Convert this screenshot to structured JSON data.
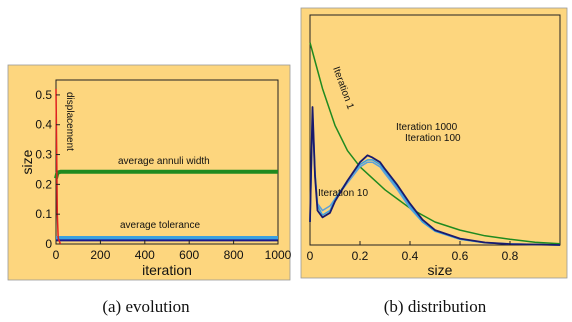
{
  "chart_data": [
    {
      "type": "line",
      "caption": "(a) evolution",
      "xlabel": "iteration",
      "ylabel": "size",
      "xlim": [
        0,
        1000
      ],
      "ylim": [
        0,
        0.55
      ],
      "xticks": [
        "0",
        "200",
        "400",
        "600",
        "800",
        "1000"
      ],
      "yticks": [
        "0",
        "0.1",
        "0.2",
        "0.3",
        "0.4",
        "0.5"
      ],
      "grid": false,
      "background": "#fdd67e",
      "series": [
        {
          "name": "average annuli width",
          "color": "#1f8a1f",
          "x": [
            0,
            5,
            10,
            20,
            50,
            100,
            200,
            400,
            600,
            800,
            1000
          ],
          "y": [
            0.22,
            0.235,
            0.24,
            0.242,
            0.242,
            0.242,
            0.242,
            0.242,
            0.242,
            0.242,
            0.242
          ]
        },
        {
          "name": "average tolerance",
          "color": "#3aa0e0",
          "x": [
            0,
            10,
            50,
            200,
            400,
            600,
            800,
            1000
          ],
          "y": [
            0.02,
            0.02,
            0.02,
            0.02,
            0.02,
            0.02,
            0.02,
            0.02
          ]
        },
        {
          "name": "",
          "color": "#1a1a8c",
          "x": [
            0,
            10,
            50,
            200,
            400,
            600,
            800,
            1000
          ],
          "y": [
            0.012,
            0.012,
            0.012,
            0.012,
            0.012,
            0.012,
            0.012,
            0.012
          ]
        },
        {
          "name": "displacement",
          "color": "#e02020",
          "x": [
            0,
            3,
            6,
            10,
            20
          ],
          "y": [
            0.52,
            0.3,
            0.1,
            0.02,
            0.0
          ]
        }
      ],
      "annotations": [
        "average annuli width",
        "average tolerance",
        "displacement"
      ]
    },
    {
      "type": "line",
      "caption": "(b) distribution",
      "xlabel": "size",
      "ylabel": "",
      "xlim": [
        0,
        1
      ],
      "ylim": [
        0,
        1
      ],
      "xticks": [
        "0",
        "0.2",
        "0.4",
        "0.6",
        "0.8"
      ],
      "grid": false,
      "background": "#fdd67e",
      "series": [
        {
          "name": "Iteration 1",
          "color": "#1f8a1f",
          "x": [
            0,
            0.02,
            0.05,
            0.1,
            0.15,
            0.2,
            0.25,
            0.3,
            0.35,
            0.4,
            0.45,
            0.5,
            0.6,
            0.7,
            0.8,
            0.9,
            1.0
          ],
          "y": [
            0.88,
            0.8,
            0.68,
            0.52,
            0.41,
            0.34,
            0.29,
            0.24,
            0.2,
            0.16,
            0.13,
            0.1,
            0.065,
            0.04,
            0.025,
            0.012,
            0.005
          ]
        },
        {
          "name": "Iteration 10",
          "color": "#5fa0d8",
          "x": [
            0,
            0.01,
            0.02,
            0.03,
            0.05,
            0.08,
            0.1,
            0.15,
            0.2,
            0.23,
            0.25,
            0.28,
            0.3,
            0.35,
            0.4,
            0.45,
            0.5,
            0.6,
            0.7,
            0.8,
            0.9,
            1.0
          ],
          "y": [
            0.1,
            0.55,
            0.3,
            0.18,
            0.15,
            0.17,
            0.2,
            0.27,
            0.34,
            0.36,
            0.36,
            0.34,
            0.31,
            0.24,
            0.16,
            0.1,
            0.06,
            0.025,
            0.01,
            0.005,
            0.002,
            0.0
          ]
        },
        {
          "name": "Iteration 100",
          "color": "#3aa0e0",
          "x": [
            0,
            0.01,
            0.02,
            0.03,
            0.05,
            0.08,
            0.1,
            0.15,
            0.2,
            0.23,
            0.25,
            0.28,
            0.3,
            0.35,
            0.4,
            0.45,
            0.5,
            0.6,
            0.7,
            0.8,
            0.9,
            1.0
          ],
          "y": [
            0.1,
            0.58,
            0.32,
            0.17,
            0.13,
            0.15,
            0.2,
            0.28,
            0.35,
            0.37,
            0.37,
            0.35,
            0.32,
            0.25,
            0.17,
            0.1,
            0.06,
            0.025,
            0.01,
            0.004,
            0.002,
            0.0
          ]
        },
        {
          "name": "Iteration 1000",
          "color": "#1a1a6c",
          "x": [
            0,
            0.01,
            0.02,
            0.03,
            0.05,
            0.08,
            0.1,
            0.15,
            0.2,
            0.23,
            0.25,
            0.28,
            0.3,
            0.35,
            0.4,
            0.45,
            0.5,
            0.6,
            0.7,
            0.8,
            0.9,
            1.0
          ],
          "y": [
            0.1,
            0.6,
            0.3,
            0.15,
            0.12,
            0.14,
            0.19,
            0.28,
            0.36,
            0.39,
            0.38,
            0.36,
            0.33,
            0.26,
            0.18,
            0.11,
            0.065,
            0.028,
            0.011,
            0.004,
            0.002,
            0.0
          ]
        }
      ],
      "annotations": [
        "Iteration 1",
        "Iteration 10",
        "Iteration 100",
        "Iteration 1000"
      ]
    }
  ]
}
